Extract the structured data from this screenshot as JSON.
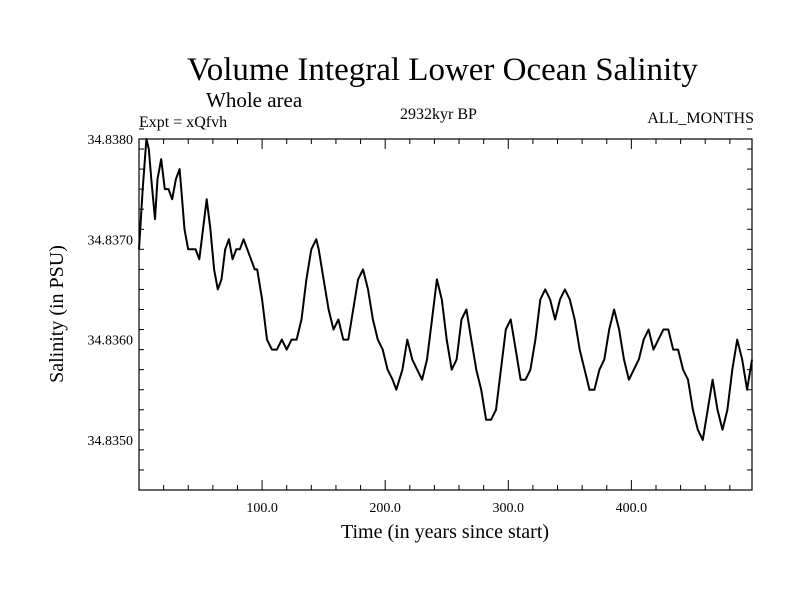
{
  "chart_data": {
    "type": "line",
    "title": "Volume Integral Lower Ocean Salinity",
    "subtitle": "Whole area",
    "annotations": {
      "left": "Expt = xQfvh",
      "center": "2932kyr BP",
      "right": "ALL_MONTHS"
    },
    "xlabel": "Time (in years since start)",
    "ylabel": "Salinity (in PSU)",
    "xlim": [
      0,
      498
    ],
    "ylim": [
      34.8345,
      34.838
    ],
    "xticks": [
      {
        "value": 100,
        "label": "100.0"
      },
      {
        "value": 200,
        "label": "200.0"
      },
      {
        "value": 300,
        "label": "300.0"
      },
      {
        "value": 400,
        "label": "400.0"
      }
    ],
    "yticks": [
      {
        "value": 34.835,
        "label": "34.8350"
      },
      {
        "value": 34.836,
        "label": "34.8360"
      },
      {
        "value": 34.837,
        "label": "34.8370"
      },
      {
        "value": 34.838,
        "label": "34.8380"
      }
    ],
    "series": [
      {
        "name": "Salinity",
        "x": [
          0,
          3,
          6,
          8,
          10,
          13,
          15,
          18,
          21,
          24,
          27,
          30,
          33,
          35,
          37,
          40,
          43,
          46,
          49,
          52,
          55,
          58,
          61,
          64,
          67,
          70,
          73,
          76,
          79,
          82,
          85,
          88,
          91,
          94,
          96,
          100,
          104,
          108,
          112,
          116,
          120,
          124,
          128,
          132,
          136,
          140,
          144,
          146,
          150,
          154,
          158,
          162,
          166,
          170,
          174,
          178,
          182,
          186,
          190,
          194,
          198,
          202,
          206,
          209,
          214,
          218,
          222,
          226,
          230,
          234,
          238,
          242,
          246,
          250,
          254,
          258,
          262,
          266,
          270,
          274,
          278,
          282,
          286,
          290,
          294,
          298,
          302,
          306,
          310,
          314,
          318,
          322,
          326,
          330,
          334,
          338,
          342,
          346,
          350,
          354,
          358,
          362,
          366,
          370,
          374,
          378,
          382,
          386,
          390,
          394,
          398,
          402,
          406,
          410,
          414,
          418,
          422,
          426,
          430,
          434,
          438,
          442,
          446,
          450,
          454,
          458,
          462,
          466,
          470,
          474,
          478,
          482,
          486,
          490,
          494,
          498
        ],
        "values": [
          34.8369,
          34.8375,
          34.838,
          34.8379,
          34.8376,
          34.8372,
          34.8376,
          34.8378,
          34.8375,
          34.8375,
          34.8374,
          34.8376,
          34.8377,
          34.8374,
          34.8371,
          34.8369,
          34.8369,
          34.8369,
          34.8368,
          34.8371,
          34.8374,
          34.8371,
          34.8367,
          34.8365,
          34.8366,
          34.8369,
          34.837,
          34.8368,
          34.8369,
          34.8369,
          34.837,
          34.8369,
          34.8368,
          34.8367,
          34.8367,
          34.8364,
          34.836,
          34.8359,
          34.8359,
          34.836,
          34.8359,
          34.836,
          34.836,
          34.8362,
          34.8366,
          34.8369,
          34.837,
          34.8369,
          34.8366,
          34.8363,
          34.8361,
          34.8362,
          34.836,
          34.836,
          34.8363,
          34.8366,
          34.8367,
          34.8365,
          34.8362,
          34.836,
          34.8359,
          34.8357,
          34.8356,
          34.8355,
          34.8357,
          34.836,
          34.8358,
          34.8357,
          34.8356,
          34.8358,
          34.8362,
          34.8366,
          34.8364,
          34.836,
          34.8357,
          34.8358,
          34.8362,
          34.8363,
          34.836,
          34.8357,
          34.8355,
          34.8352,
          34.8352,
          34.8353,
          34.8357,
          34.8361,
          34.8362,
          34.8359,
          34.8356,
          34.8356,
          34.8357,
          34.836,
          34.8364,
          34.8365,
          34.8364,
          34.8362,
          34.8364,
          34.8365,
          34.8364,
          34.8362,
          34.8359,
          34.8357,
          34.8355,
          34.8355,
          34.8357,
          34.8358,
          34.8361,
          34.8363,
          34.8361,
          34.8358,
          34.8356,
          34.8357,
          34.8358,
          34.836,
          34.8361,
          34.8359,
          34.836,
          34.8361,
          34.8361,
          34.8359,
          34.8359,
          34.8357,
          34.8356,
          34.8353,
          34.8351,
          34.835,
          34.8353,
          34.8356,
          34.8353,
          34.8351,
          34.8353,
          34.8357,
          34.836,
          34.8358,
          34.8355,
          34.8358
        ]
      }
    ]
  }
}
